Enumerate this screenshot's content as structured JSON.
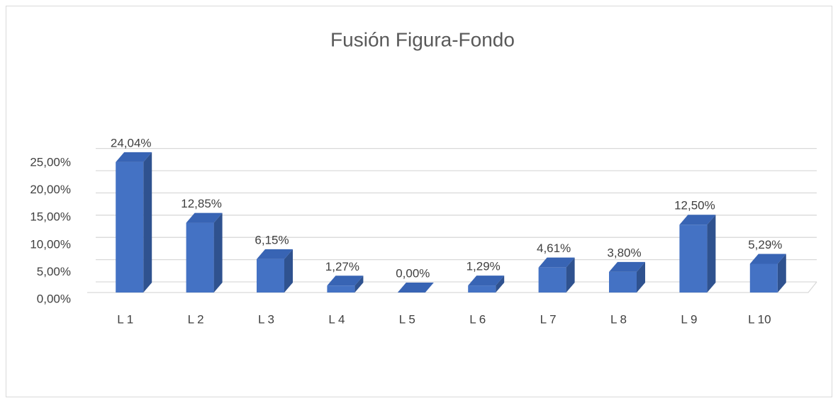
{
  "chart_data": {
    "type": "bar3d",
    "title": "Fusión Figura-Fondo",
    "categories": [
      "L 1",
      "L 2",
      "L 3",
      "L 4",
      "L 5",
      "L 6",
      "L 7",
      "L 8",
      "L 9",
      "L 10"
    ],
    "values": [
      24.04,
      12.85,
      6.15,
      1.27,
      0,
      1.29,
      4.61,
      3.8,
      12.5,
      5.29
    ],
    "value_labels": [
      "24,04%",
      "12,85%",
      "6,15%",
      "1,27%",
      "0,00%",
      "1,29%",
      "4,61%",
      "3,80%",
      "12,50%",
      "5,29%"
    ],
    "color": "#4472c4",
    "ylim": [
      0,
      30
    ],
    "yticks": [
      {
        "value": 0,
        "label": "0,00%"
      },
      {
        "value": 5,
        "label": "5,00%"
      },
      {
        "value": 10,
        "label": "10,00%"
      },
      {
        "value": 15,
        "label": "15,00%"
      },
      {
        "value": 20,
        "label": "20,00%"
      },
      {
        "value": 25,
        "label": "25,00%"
      }
    ],
    "grid": true
  }
}
